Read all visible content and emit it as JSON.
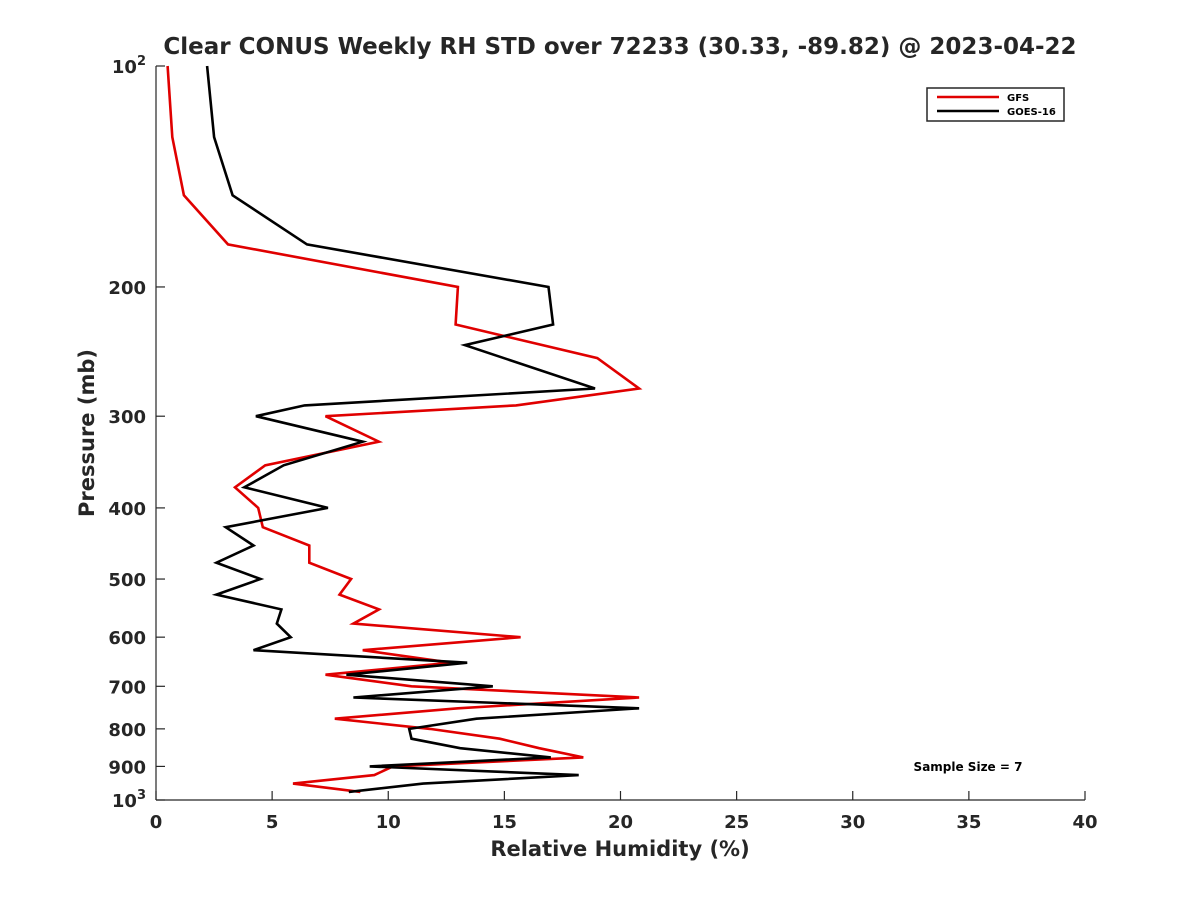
{
  "chart_data": {
    "type": "line",
    "title": "Clear CONUS Weekly RH STD over 72233 (30.33, -89.82) @ 2023-04-22",
    "xlabel": "Relative Humidity (%)",
    "ylabel": "Pressure (mb)",
    "xlim": [
      0,
      40
    ],
    "ylim": [
      100,
      1000
    ],
    "yscale": "log",
    "y_reversed": true,
    "grid": false,
    "legend_position": "top-right",
    "x_ticks": [
      "0",
      "5",
      "10",
      "15",
      "20",
      "25",
      "30",
      "35",
      "40"
    ],
    "y_ticks": [
      {
        "value": 100,
        "base": "10",
        "exp": "2"
      },
      {
        "value": 200,
        "label": "200"
      },
      {
        "value": 300,
        "label": "300"
      },
      {
        "value": 400,
        "label": "400"
      },
      {
        "value": 500,
        "label": "500"
      },
      {
        "value": 600,
        "label": "600"
      },
      {
        "value": 700,
        "label": "700"
      },
      {
        "value": 800,
        "label": "800"
      },
      {
        "value": 900,
        "label": "900"
      },
      {
        "value": 1000,
        "base": "10",
        "exp": "3"
      }
    ],
    "annotation": "Sample Size = 7",
    "series": [
      {
        "name": "GFS",
        "color": "#e00000",
        "points": [
          [
            0.5,
            100
          ],
          [
            0.7,
            125
          ],
          [
            1.2,
            150
          ],
          [
            3.1,
            175
          ],
          [
            13.0,
            200
          ],
          [
            12.9,
            225
          ],
          [
            19.0,
            250
          ],
          [
            20.8,
            275
          ],
          [
            15.5,
            290
          ],
          [
            7.3,
            300
          ],
          [
            9.6,
            325
          ],
          [
            4.7,
            350
          ],
          [
            3.4,
            375
          ],
          [
            4.4,
            400
          ],
          [
            4.6,
            425
          ],
          [
            6.6,
            450
          ],
          [
            6.6,
            475
          ],
          [
            8.4,
            500
          ],
          [
            7.9,
            525
          ],
          [
            9.6,
            550
          ],
          [
            8.5,
            575
          ],
          [
            15.7,
            600
          ],
          [
            8.9,
            625
          ],
          [
            12.7,
            650
          ],
          [
            7.3,
            675
          ],
          [
            11.0,
            700
          ],
          [
            20.8,
            725
          ],
          [
            13.0,
            750
          ],
          [
            7.7,
            775
          ],
          [
            11.8,
            800
          ],
          [
            14.8,
            825
          ],
          [
            16.5,
            850
          ],
          [
            18.4,
            875
          ],
          [
            10.2,
            900
          ],
          [
            9.4,
            925
          ],
          [
            5.9,
            950
          ],
          [
            8.8,
            975
          ]
        ]
      },
      {
        "name": "GOES-16",
        "color": "#000000",
        "points": [
          [
            2.2,
            100
          ],
          [
            2.5,
            125
          ],
          [
            3.3,
            150
          ],
          [
            6.5,
            175
          ],
          [
            16.9,
            200
          ],
          [
            17.1,
            225
          ],
          [
            13.3,
            240
          ],
          [
            18.9,
            275
          ],
          [
            6.4,
            290
          ],
          [
            4.3,
            300
          ],
          [
            8.9,
            325
          ],
          [
            5.5,
            350
          ],
          [
            3.8,
            375
          ],
          [
            7.4,
            400
          ],
          [
            3.0,
            425
          ],
          [
            4.2,
            450
          ],
          [
            2.6,
            475
          ],
          [
            4.5,
            500
          ],
          [
            2.6,
            525
          ],
          [
            5.4,
            550
          ],
          [
            5.2,
            575
          ],
          [
            5.8,
            600
          ],
          [
            4.2,
            625
          ],
          [
            13.4,
            650
          ],
          [
            8.2,
            675
          ],
          [
            14.5,
            700
          ],
          [
            8.5,
            725
          ],
          [
            20.8,
            750
          ],
          [
            13.8,
            775
          ],
          [
            10.9,
            800
          ],
          [
            11.0,
            825
          ],
          [
            13.1,
            850
          ],
          [
            17.0,
            875
          ],
          [
            9.2,
            900
          ],
          [
            18.2,
            925
          ],
          [
            11.5,
            950
          ],
          [
            8.3,
            975
          ]
        ]
      }
    ]
  }
}
